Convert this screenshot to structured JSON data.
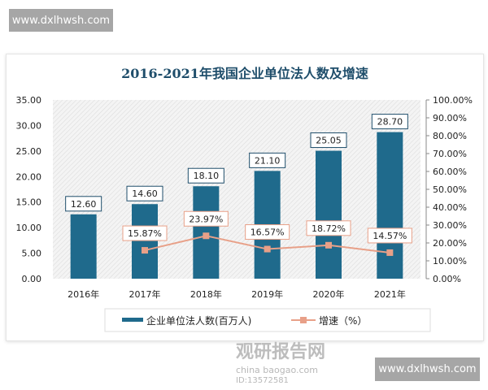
{
  "watermark_top": "www.dxlhwsh.com",
  "watermark_bottom": "www.dxlhwsh.com",
  "logo": {
    "name": "观研报告网",
    "sub": "china baogao.com",
    "id": "ID:13572581"
  },
  "chart_data": {
    "type": "bar+line",
    "title": "2016-2021年我国企业单位法人数及增速",
    "categories": [
      "2016年",
      "2017年",
      "2018年",
      "2019年",
      "2020年",
      "2021年"
    ],
    "y_left": {
      "range": [
        0,
        35
      ],
      "ticks": [
        "0.00",
        "5.00",
        "10.00",
        "15.00",
        "20.00",
        "25.00",
        "30.00",
        "35.00"
      ]
    },
    "y_right": {
      "range": [
        0,
        100
      ],
      "ticks": [
        "0.00%",
        "10.00%",
        "20.00%",
        "30.00%",
        "40.00%",
        "50.00%",
        "60.00%",
        "70.00%",
        "80.00%",
        "90.00%",
        "100.00%"
      ]
    },
    "series": [
      {
        "name": "企业单位法人数(百万人)",
        "type": "bar",
        "axis": "left",
        "color": "#1f6a8c",
        "values": [
          12.6,
          14.6,
          18.1,
          21.1,
          25.05,
          28.7
        ],
        "labels": [
          "12.60",
          "14.60",
          "18.10",
          "21.10",
          "25.05",
          "28.70"
        ]
      },
      {
        "name": "增速（%）",
        "type": "line",
        "axis": "right",
        "color": "#e8a088",
        "values": [
          null,
          15.87,
          23.97,
          16.57,
          18.72,
          14.57
        ],
        "labels": [
          "",
          "15.87%",
          "23.97%",
          "16.57%",
          "18.72%",
          "14.57%"
        ]
      }
    ],
    "legend": "bottom",
    "plot_background": "diagonal hatch"
  }
}
